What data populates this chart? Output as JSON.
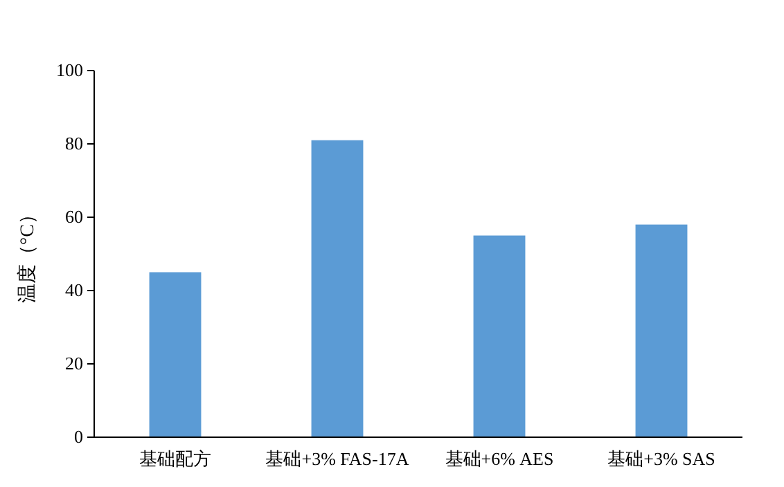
{
  "chart_data": {
    "type": "bar",
    "ylabel": "温度（°C）",
    "categories": [
      "基础配方",
      "基础+3% FAS-17A",
      "基础+6% AES",
      "基础+3% SAS"
    ],
    "values": [
      45,
      81,
      55,
      58
    ],
    "color": "#5b9bd5",
    "ylim": [
      0,
      100
    ],
    "yticks": [
      0,
      20,
      40,
      60,
      80,
      100
    ],
    "grid": false
  }
}
